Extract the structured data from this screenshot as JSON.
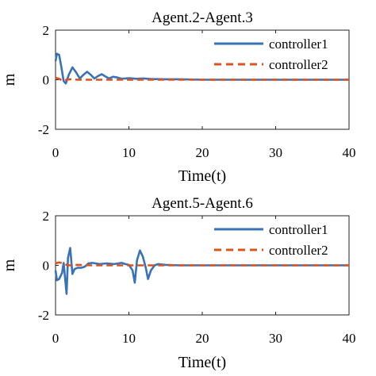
{
  "chart_data": [
    {
      "type": "line",
      "title": "Agent.2-Agent.3",
      "xlabel": "Time(t)",
      "ylabel": "m",
      "xlim": [
        0,
        40
      ],
      "ylim": [
        -2,
        2
      ],
      "xticks": [
        "0",
        "10",
        "20",
        "30",
        "40"
      ],
      "yticks": [
        "2",
        "0",
        "-2"
      ],
      "legend_position": "top-right",
      "series": [
        {
          "name": "controller1",
          "color": "#3a72b8",
          "style": "solid",
          "points": [
            [
              0,
              0.75
            ],
            [
              0.2,
              1.05
            ],
            [
              0.5,
              1.0
            ],
            [
              0.8,
              0.5
            ],
            [
              1.1,
              -0.05
            ],
            [
              1.4,
              -0.15
            ],
            [
              1.8,
              0.2
            ],
            [
              2.3,
              0.5
            ],
            [
              2.8,
              0.3
            ],
            [
              3.3,
              0.05
            ],
            [
              3.8,
              0.2
            ],
            [
              4.3,
              0.32
            ],
            [
              4.8,
              0.2
            ],
            [
              5.3,
              0.05
            ],
            [
              5.8,
              0.15
            ],
            [
              6.3,
              0.22
            ],
            [
              6.8,
              0.13
            ],
            [
              7.3,
              0.05
            ],
            [
              7.8,
              0.12
            ],
            [
              8.3,
              0.1
            ],
            [
              9,
              0.04
            ],
            [
              10,
              0.06
            ],
            [
              11,
              0.04
            ],
            [
              12,
              0.05
            ],
            [
              13,
              0.03
            ],
            [
              15,
              0.02
            ],
            [
              17,
              0.02
            ],
            [
              20,
              0.0
            ],
            [
              25,
              0.0
            ],
            [
              30,
              0.0
            ],
            [
              35,
              0.0
            ],
            [
              40,
              0.0
            ]
          ]
        },
        {
          "name": "controller2",
          "color": "#d9541e",
          "style": "dashed",
          "points": [
            [
              0,
              0.08
            ],
            [
              0.3,
              0.05
            ],
            [
              0.6,
              0.02
            ],
            [
              1,
              -0.04
            ],
            [
              1.5,
              0.0
            ],
            [
              2,
              0.02
            ],
            [
              3,
              0.0
            ],
            [
              5,
              0.0
            ],
            [
              10,
              0.0
            ],
            [
              20,
              0.0
            ],
            [
              30,
              0.0
            ],
            [
              40,
              0.0
            ]
          ]
        }
      ]
    },
    {
      "type": "line",
      "title": "Agent.5-Agent.6",
      "xlabel": "Time(t)",
      "ylabel": "m",
      "xlim": [
        0,
        40
      ],
      "ylim": [
        -2,
        2
      ],
      "xticks": [
        "0",
        "10",
        "20",
        "30",
        "40"
      ],
      "yticks": [
        "2",
        "0",
        "-2"
      ],
      "legend_position": "top-right",
      "series": [
        {
          "name": "controller1",
          "color": "#3a72b8",
          "style": "solid",
          "points": [
            [
              0,
              -0.2
            ],
            [
              0.2,
              -0.6
            ],
            [
              0.5,
              -0.55
            ],
            [
              0.9,
              -0.3
            ],
            [
              1.1,
              0.1
            ],
            [
              1.3,
              -0.5
            ],
            [
              1.5,
              -1.15
            ],
            [
              1.7,
              0.3
            ],
            [
              2,
              0.7
            ],
            [
              2.3,
              -0.35
            ],
            [
              2.6,
              -0.15
            ],
            [
              3,
              -0.1
            ],
            [
              3.5,
              -0.1
            ],
            [
              4,
              -0.05
            ],
            [
              4.5,
              0.08
            ],
            [
              5,
              0.1
            ],
            [
              6,
              0.05
            ],
            [
              7,
              0.08
            ],
            [
              8,
              0.05
            ],
            [
              9,
              0.1
            ],
            [
              9.5,
              0.05
            ],
            [
              10,
              0.02
            ],
            [
              10.5,
              -0.2
            ],
            [
              10.8,
              -0.7
            ],
            [
              11.1,
              0.2
            ],
            [
              11.5,
              0.6
            ],
            [
              11.9,
              0.35
            ],
            [
              12.3,
              -0.1
            ],
            [
              12.6,
              -0.55
            ],
            [
              13,
              -0.2
            ],
            [
              13.5,
              0.0
            ],
            [
              14,
              0.05
            ],
            [
              15,
              0.02
            ],
            [
              17,
              0.0
            ],
            [
              20,
              0.0
            ],
            [
              30,
              0.0
            ],
            [
              40,
              0.0
            ]
          ]
        },
        {
          "name": "controller2",
          "color": "#d9541e",
          "style": "dashed",
          "points": [
            [
              0,
              0.08
            ],
            [
              0.5,
              0.12
            ],
            [
              1,
              0.08
            ],
            [
              1.5,
              0.02
            ],
            [
              2,
              0.0
            ],
            [
              3,
              0.02
            ],
            [
              5,
              0.0
            ],
            [
              10,
              0.0
            ],
            [
              20,
              0.0
            ],
            [
              30,
              0.0
            ],
            [
              40,
              0.0
            ]
          ]
        }
      ]
    }
  ]
}
